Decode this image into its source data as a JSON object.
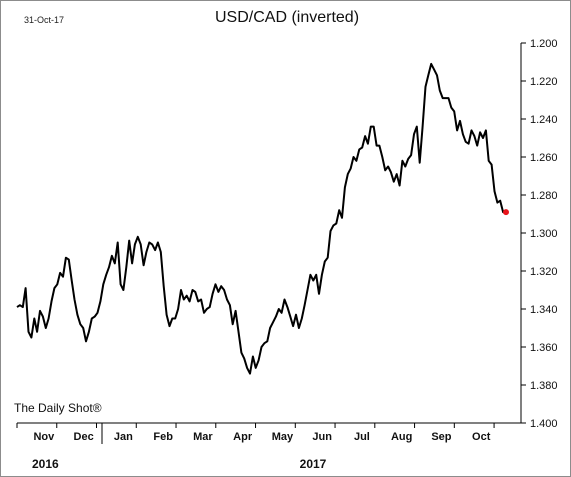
{
  "date_stamp": "31-Oct-17",
  "source": "The Daily Shot®",
  "colors": {
    "line": "#000000",
    "last_point": "#e8141b",
    "axis": "#000000"
  },
  "chart_data": {
    "type": "line",
    "title": "USD/CAD (inverted)",
    "xlabel": "",
    "ylabel": "",
    "y_axis": "inverted",
    "ylim": [
      1.2,
      1.4
    ],
    "y_ticks": [
      "1.200",
      "1.220",
      "1.240",
      "1.260",
      "1.280",
      "1.300",
      "1.320",
      "1.340",
      "1.360",
      "1.380",
      "1.400"
    ],
    "months": [
      "Nov",
      "Dec",
      "Jan",
      "Feb",
      "Mar",
      "Apr",
      "May",
      "Jun",
      "Jul",
      "Aug",
      "Sep",
      "Oct"
    ],
    "years": [
      "2016",
      "2017"
    ],
    "grid": false,
    "legend": "none",
    "series": [
      {
        "values": [
          1.339,
          1.338,
          1.339,
          1.329,
          1.352,
          1.355,
          1.345,
          1.352,
          1.341,
          1.344,
          1.35,
          1.345,
          1.336,
          1.329,
          1.327,
          1.321,
          1.323,
          1.313,
          1.314,
          1.325,
          1.335,
          1.343,
          1.348,
          1.35,
          1.357,
          1.352,
          1.345,
          1.344,
          1.342,
          1.336,
          1.327,
          1.322,
          1.318,
          1.312,
          1.316,
          1.305,
          1.327,
          1.33,
          1.318,
          1.304,
          1.316,
          1.306,
          1.302,
          1.306,
          1.317,
          1.31,
          1.305,
          1.306,
          1.309,
          1.305,
          1.31,
          1.328,
          1.343,
          1.349,
          1.345,
          1.345,
          1.34,
          1.33,
          1.335,
          1.333,
          1.336,
          1.33,
          1.331,
          1.336,
          1.335,
          1.342,
          1.34,
          1.339,
          1.332,
          1.327,
          1.331,
          1.328,
          1.33,
          1.335,
          1.338,
          1.348,
          1.341,
          1.352,
          1.363,
          1.366,
          1.371,
          1.374,
          1.365,
          1.371,
          1.367,
          1.36,
          1.358,
          1.357,
          1.35,
          1.347,
          1.344,
          1.34,
          1.342,
          1.335,
          1.339,
          1.344,
          1.349,
          1.343,
          1.35,
          1.345,
          1.338,
          1.33,
          1.322,
          1.325,
          1.322,
          1.332,
          1.322,
          1.315,
          1.313,
          1.299,
          1.296,
          1.295,
          1.288,
          1.292,
          1.276,
          1.269,
          1.266,
          1.26,
          1.262,
          1.256,
          1.255,
          1.249,
          1.253,
          1.244,
          1.244,
          1.254,
          1.254,
          1.26,
          1.267,
          1.265,
          1.268,
          1.273,
          1.269,
          1.275,
          1.262,
          1.265,
          1.261,
          1.259,
          1.248,
          1.244,
          1.263,
          1.244,
          1.223,
          1.217,
          1.211,
          1.214,
          1.217,
          1.225,
          1.229,
          1.229,
          1.229,
          1.234,
          1.236,
          1.246,
          1.241,
          1.248,
          1.252,
          1.253,
          1.246,
          1.249,
          1.254,
          1.247,
          1.25,
          1.246,
          1.262,
          1.264,
          1.278,
          1.284,
          1.283,
          1.289,
          1.289
        ]
      }
    ]
  }
}
